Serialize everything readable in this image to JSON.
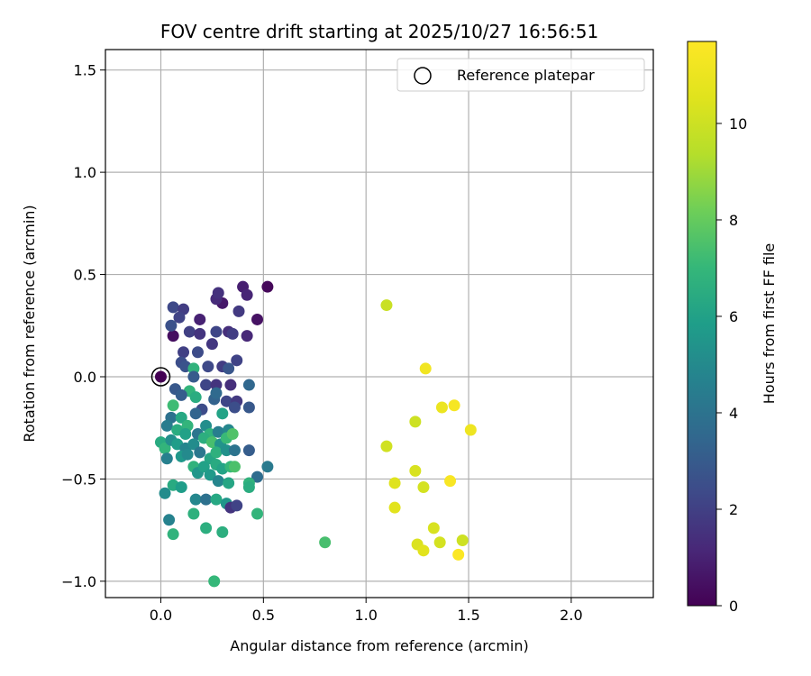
{
  "chart_data": {
    "type": "scatter",
    "title": "FOV centre drift starting at 2025/10/27 16:56:51",
    "xlabel": "Angular distance from reference (arcmin)",
    "ylabel": "Rotation from reference (arcmin)",
    "xlim": [
      -0.27,
      2.4
    ],
    "ylim": [
      -1.08,
      1.6
    ],
    "xticks": [
      0.0,
      0.5,
      1.0,
      1.5,
      2.0
    ],
    "xtick_labels": [
      "0.0",
      "0.5",
      "1.0",
      "1.5",
      "2.0"
    ],
    "yticks": [
      -1.0,
      -0.5,
      0.0,
      0.5,
      1.0,
      1.5
    ],
    "ytick_labels": [
      "−1.0",
      "−0.5",
      "0.0",
      "0.5",
      "1.0",
      "1.5"
    ],
    "grid": true,
    "legend": {
      "position": "top-right",
      "label": "Reference platepar"
    },
    "reference_point": {
      "x": 0.0,
      "y": 0.0,
      "hours": 0.0
    },
    "colorbar": {
      "label": "Hours from first FF file",
      "range": [
        0,
        11.7
      ],
      "ticks": [
        0,
        2,
        4,
        6,
        8,
        10
      ],
      "tick_labels": [
        "0",
        "2",
        "4",
        "6",
        "8",
        "10"
      ]
    },
    "series": [
      {
        "name": "FOV centre drift",
        "points": [
          [
            0.0,
            0.0,
            0.0
          ],
          [
            0.52,
            0.44,
            0.2
          ],
          [
            0.47,
            0.28,
            0.5
          ],
          [
            0.3,
            0.36,
            0.7
          ],
          [
            0.4,
            0.44,
            0.9
          ],
          [
            0.42,
            0.4,
            1.1
          ],
          [
            0.27,
            0.38,
            1.3
          ],
          [
            0.28,
            0.41,
            1.5
          ],
          [
            0.19,
            0.28,
            1.0
          ],
          [
            0.38,
            0.32,
            1.8
          ],
          [
            0.06,
            0.34,
            2.3
          ],
          [
            0.11,
            0.33,
            1.9
          ],
          [
            0.09,
            0.29,
            2.1
          ],
          [
            0.06,
            0.2,
            0.4
          ],
          [
            0.05,
            0.25,
            2.6
          ],
          [
            0.14,
            0.22,
            2.0
          ],
          [
            0.19,
            0.21,
            1.6
          ],
          [
            0.25,
            0.16,
            1.7
          ],
          [
            0.27,
            0.22,
            2.2
          ],
          [
            0.33,
            0.22,
            1.4
          ],
          [
            0.35,
            0.21,
            1.9
          ],
          [
            0.42,
            0.2,
            1.2
          ],
          [
            0.11,
            0.12,
            2.0
          ],
          [
            0.18,
            0.12,
            2.4
          ],
          [
            0.1,
            0.07,
            2.5
          ],
          [
            0.12,
            0.05,
            2.7
          ],
          [
            0.23,
            0.05,
            2.3
          ],
          [
            0.3,
            0.05,
            1.9
          ],
          [
            0.33,
            0.04,
            2.8
          ],
          [
            0.37,
            0.08,
            2.1
          ],
          [
            0.16,
            0.04,
            6.8
          ],
          [
            0.14,
            -0.07,
            6.9
          ],
          [
            0.16,
            0.0,
            3.0
          ],
          [
            0.22,
            -0.04,
            2.2
          ],
          [
            0.27,
            -0.04,
            1.6
          ],
          [
            0.34,
            -0.04,
            1.4
          ],
          [
            0.43,
            -0.04,
            3.5
          ],
          [
            0.07,
            -0.06,
            2.9
          ],
          [
            0.1,
            -0.09,
            3.1
          ],
          [
            0.17,
            -0.1,
            6.5
          ],
          [
            0.2,
            -0.16,
            2.4
          ],
          [
            0.26,
            -0.11,
            3.3
          ],
          [
            0.32,
            -0.12,
            2.2
          ],
          [
            0.37,
            -0.12,
            1.8
          ],
          [
            0.43,
            -0.15,
            2.9
          ],
          [
            0.27,
            -0.08,
            3.6
          ],
          [
            0.06,
            -0.14,
            7.2
          ],
          [
            0.05,
            -0.2,
            3.9
          ],
          [
            0.1,
            -0.2,
            6.3
          ],
          [
            0.13,
            -0.24,
            6.9
          ],
          [
            0.17,
            -0.18,
            3.4
          ],
          [
            0.22,
            -0.24,
            5.2
          ],
          [
            0.3,
            -0.18,
            6.1
          ],
          [
            0.36,
            -0.15,
            2.5
          ],
          [
            0.03,
            -0.24,
            4.4
          ],
          [
            0.08,
            -0.26,
            6.5
          ],
          [
            0.12,
            -0.28,
            6.0
          ],
          [
            0.18,
            -0.28,
            4.1
          ],
          [
            0.24,
            -0.28,
            6.8
          ],
          [
            0.28,
            -0.27,
            4.5
          ],
          [
            0.33,
            -0.26,
            4.9
          ],
          [
            0.0,
            -0.32,
            6.4
          ],
          [
            0.02,
            -0.35,
            6.9
          ],
          [
            0.05,
            -0.31,
            5.2
          ],
          [
            0.08,
            -0.33,
            5.8
          ],
          [
            0.12,
            -0.35,
            4.8
          ],
          [
            0.16,
            -0.33,
            5.1
          ],
          [
            0.21,
            -0.3,
            6.6
          ],
          [
            0.25,
            -0.32,
            7.4
          ],
          [
            0.29,
            -0.33,
            5.4
          ],
          [
            0.32,
            -0.3,
            7.1
          ],
          [
            0.35,
            -0.28,
            7.6
          ],
          [
            0.03,
            -0.4,
            4.6
          ],
          [
            0.1,
            -0.39,
            5.6
          ],
          [
            0.13,
            -0.38,
            5.0
          ],
          [
            0.19,
            -0.37,
            4.2
          ],
          [
            0.24,
            -0.4,
            6.2
          ],
          [
            0.27,
            -0.37,
            6.7
          ],
          [
            0.32,
            -0.36,
            5.3
          ],
          [
            0.36,
            -0.36,
            4.0
          ],
          [
            0.43,
            -0.36,
            3.1
          ],
          [
            0.16,
            -0.44,
            6.8
          ],
          [
            0.18,
            -0.47,
            5.5
          ],
          [
            0.21,
            -0.44,
            6.0
          ],
          [
            0.24,
            -0.48,
            5.7
          ],
          [
            0.27,
            -0.43,
            6.4
          ],
          [
            0.3,
            -0.45,
            6.1
          ],
          [
            0.34,
            -0.44,
            7.0
          ],
          [
            0.36,
            -0.44,
            7.5
          ],
          [
            0.52,
            -0.44,
            4.3
          ],
          [
            0.47,
            -0.49,
            3.7
          ],
          [
            0.28,
            -0.51,
            4.8
          ],
          [
            0.33,
            -0.52,
            6.2
          ],
          [
            0.43,
            -0.52,
            6.8
          ],
          [
            0.43,
            -0.54,
            6.5
          ],
          [
            0.06,
            -0.53,
            6.4
          ],
          [
            0.1,
            -0.54,
            5.8
          ],
          [
            0.02,
            -0.57,
            5.1
          ],
          [
            0.17,
            -0.6,
            4.9
          ],
          [
            0.22,
            -0.6,
            3.9
          ],
          [
            0.27,
            -0.6,
            6.3
          ],
          [
            0.32,
            -0.62,
            5.5
          ],
          [
            0.34,
            -0.64,
            1.6
          ],
          [
            0.37,
            -0.63,
            2.1
          ],
          [
            0.16,
            -0.67,
            6.7
          ],
          [
            0.47,
            -0.67,
            6.9
          ],
          [
            0.04,
            -0.7,
            4.7
          ],
          [
            0.06,
            -0.77,
            6.8
          ],
          [
            0.22,
            -0.74,
            6.6
          ],
          [
            0.3,
            -0.76,
            6.6
          ],
          [
            0.26,
            -1.0,
            7.0
          ],
          [
            0.8,
            -0.81,
            7.4
          ],
          [
            1.1,
            0.35,
            9.9
          ],
          [
            1.29,
            0.04,
            11.2
          ],
          [
            1.37,
            -0.15,
            11.0
          ],
          [
            1.43,
            -0.14,
            11.4
          ],
          [
            1.51,
            -0.26,
            11.1
          ],
          [
            1.24,
            -0.22,
            10.0
          ],
          [
            1.1,
            -0.34,
            10.1
          ],
          [
            1.24,
            -0.46,
            10.3
          ],
          [
            1.14,
            -0.52,
            10.5
          ],
          [
            1.28,
            -0.54,
            10.2
          ],
          [
            1.41,
            -0.51,
            11.5
          ],
          [
            1.14,
            -0.64,
            10.6
          ],
          [
            1.33,
            -0.74,
            10.3
          ],
          [
            1.25,
            -0.82,
            10.4
          ],
          [
            1.28,
            -0.85,
            10.6
          ],
          [
            1.36,
            -0.81,
            10.2
          ],
          [
            1.47,
            -0.8,
            10.0
          ],
          [
            1.45,
            -0.87,
            11.6
          ]
        ]
      }
    ]
  }
}
